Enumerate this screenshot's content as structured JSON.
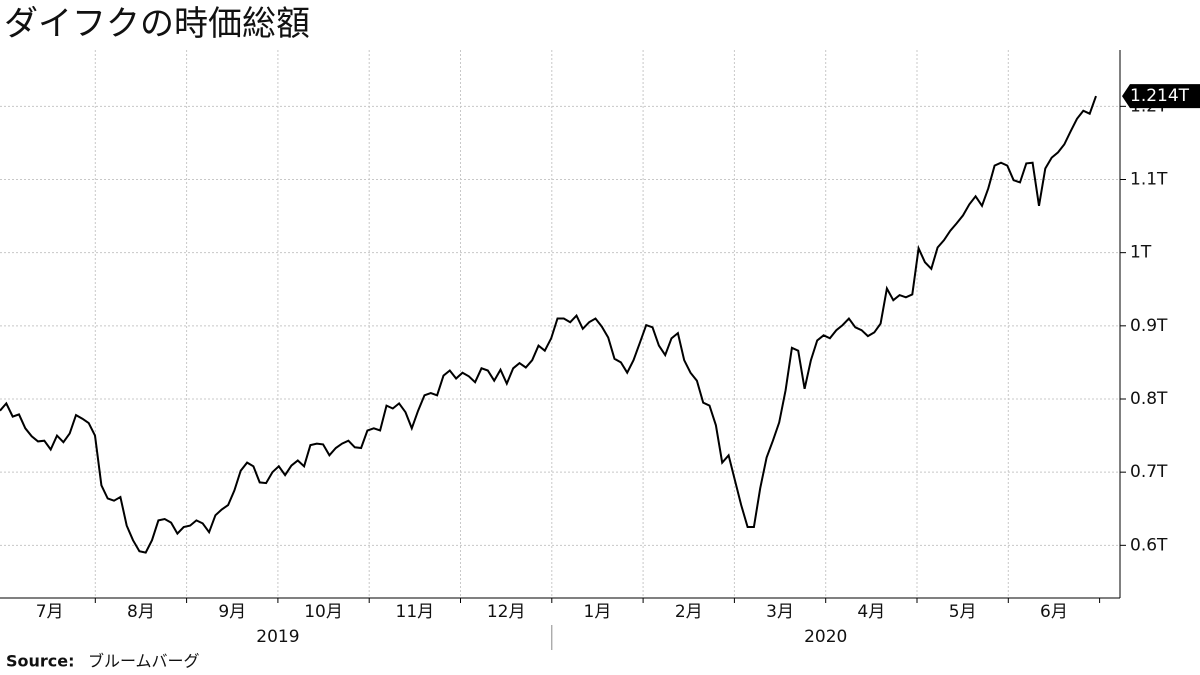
{
  "chart_data": {
    "type": "line",
    "title": "ダイフクの時価総額",
    "source_label": "Source:",
    "source": "ブルームバーグ",
    "x_tick_labels": [
      "7月",
      "8月",
      "9月",
      "10月",
      "11月",
      "12月",
      "1月",
      "2月",
      "3月",
      "4月",
      "5月",
      "6月"
    ],
    "year_labels": [
      "2019",
      "2020"
    ],
    "ylim": [
      0.528,
      1.277
    ],
    "yticks": [
      {
        "value": 0.6,
        "label": "0.6T"
      },
      {
        "value": 0.7,
        "label": "0.7T"
      },
      {
        "value": 0.8,
        "label": "0.8T"
      },
      {
        "value": 0.9,
        "label": "0.9T"
      },
      {
        "value": 1,
        "label": "1T"
      },
      {
        "value": 1.1,
        "label": "1.1T"
      },
      {
        "value": 1.2,
        "label": "1.2T"
      }
    ],
    "grid": true,
    "series": [
      {
        "color": "#000000",
        "end_label": "1.214T",
        "values": [
          0.784,
          0.794,
          0.776,
          0.779,
          0.76,
          0.749,
          0.742,
          0.743,
          0.731,
          0.75,
          0.741,
          0.753,
          0.778,
          0.773,
          0.767,
          0.75,
          0.682,
          0.664,
          0.661,
          0.666,
          0.627,
          0.607,
          0.592,
          0.59,
          0.607,
          0.634,
          0.636,
          0.631,
          0.616,
          0.625,
          0.627,
          0.634,
          0.63,
          0.618,
          0.641,
          0.649,
          0.655,
          0.675,
          0.702,
          0.713,
          0.708,
          0.686,
          0.685,
          0.7,
          0.708,
          0.696,
          0.709,
          0.716,
          0.708,
          0.737,
          0.739,
          0.738,
          0.723,
          0.733,
          0.739,
          0.743,
          0.734,
          0.733,
          0.757,
          0.76,
          0.757,
          0.791,
          0.787,
          0.794,
          0.782,
          0.76,
          0.784,
          0.805,
          0.808,
          0.805,
          0.832,
          0.839,
          0.828,
          0.836,
          0.831,
          0.823,
          0.842,
          0.839,
          0.825,
          0.84,
          0.821,
          0.842,
          0.849,
          0.843,
          0.853,
          0.873,
          0.866,
          0.883,
          0.91,
          0.91,
          0.905,
          0.914,
          0.896,
          0.905,
          0.91,
          0.899,
          0.884,
          0.855,
          0.85,
          0.836,
          0.853,
          0.877,
          0.901,
          0.898,
          0.873,
          0.86,
          0.883,
          0.89,
          0.853,
          0.836,
          0.825,
          0.795,
          0.791,
          0.764,
          0.713,
          0.723,
          0.689,
          0.655,
          0.625,
          0.625,
          0.678,
          0.72,
          0.743,
          0.768,
          0.812,
          0.87,
          0.866,
          0.814,
          0.853,
          0.88,
          0.887,
          0.883,
          0.894,
          0.901,
          0.91,
          0.898,
          0.894,
          0.886,
          0.891,
          0.903,
          0.951,
          0.935,
          0.942,
          0.939,
          0.943,
          1.006,
          0.987,
          0.978,
          1.007,
          1.017,
          1.03,
          1.04,
          1.051,
          1.066,
          1.077,
          1.064,
          1.088,
          1.119,
          1.123,
          1.119,
          1.099,
          1.096,
          1.122,
          1.123,
          1.064,
          1.115,
          1.13,
          1.137,
          1.148,
          1.166,
          1.183,
          1.194,
          1.19,
          1.214
        ]
      }
    ]
  }
}
